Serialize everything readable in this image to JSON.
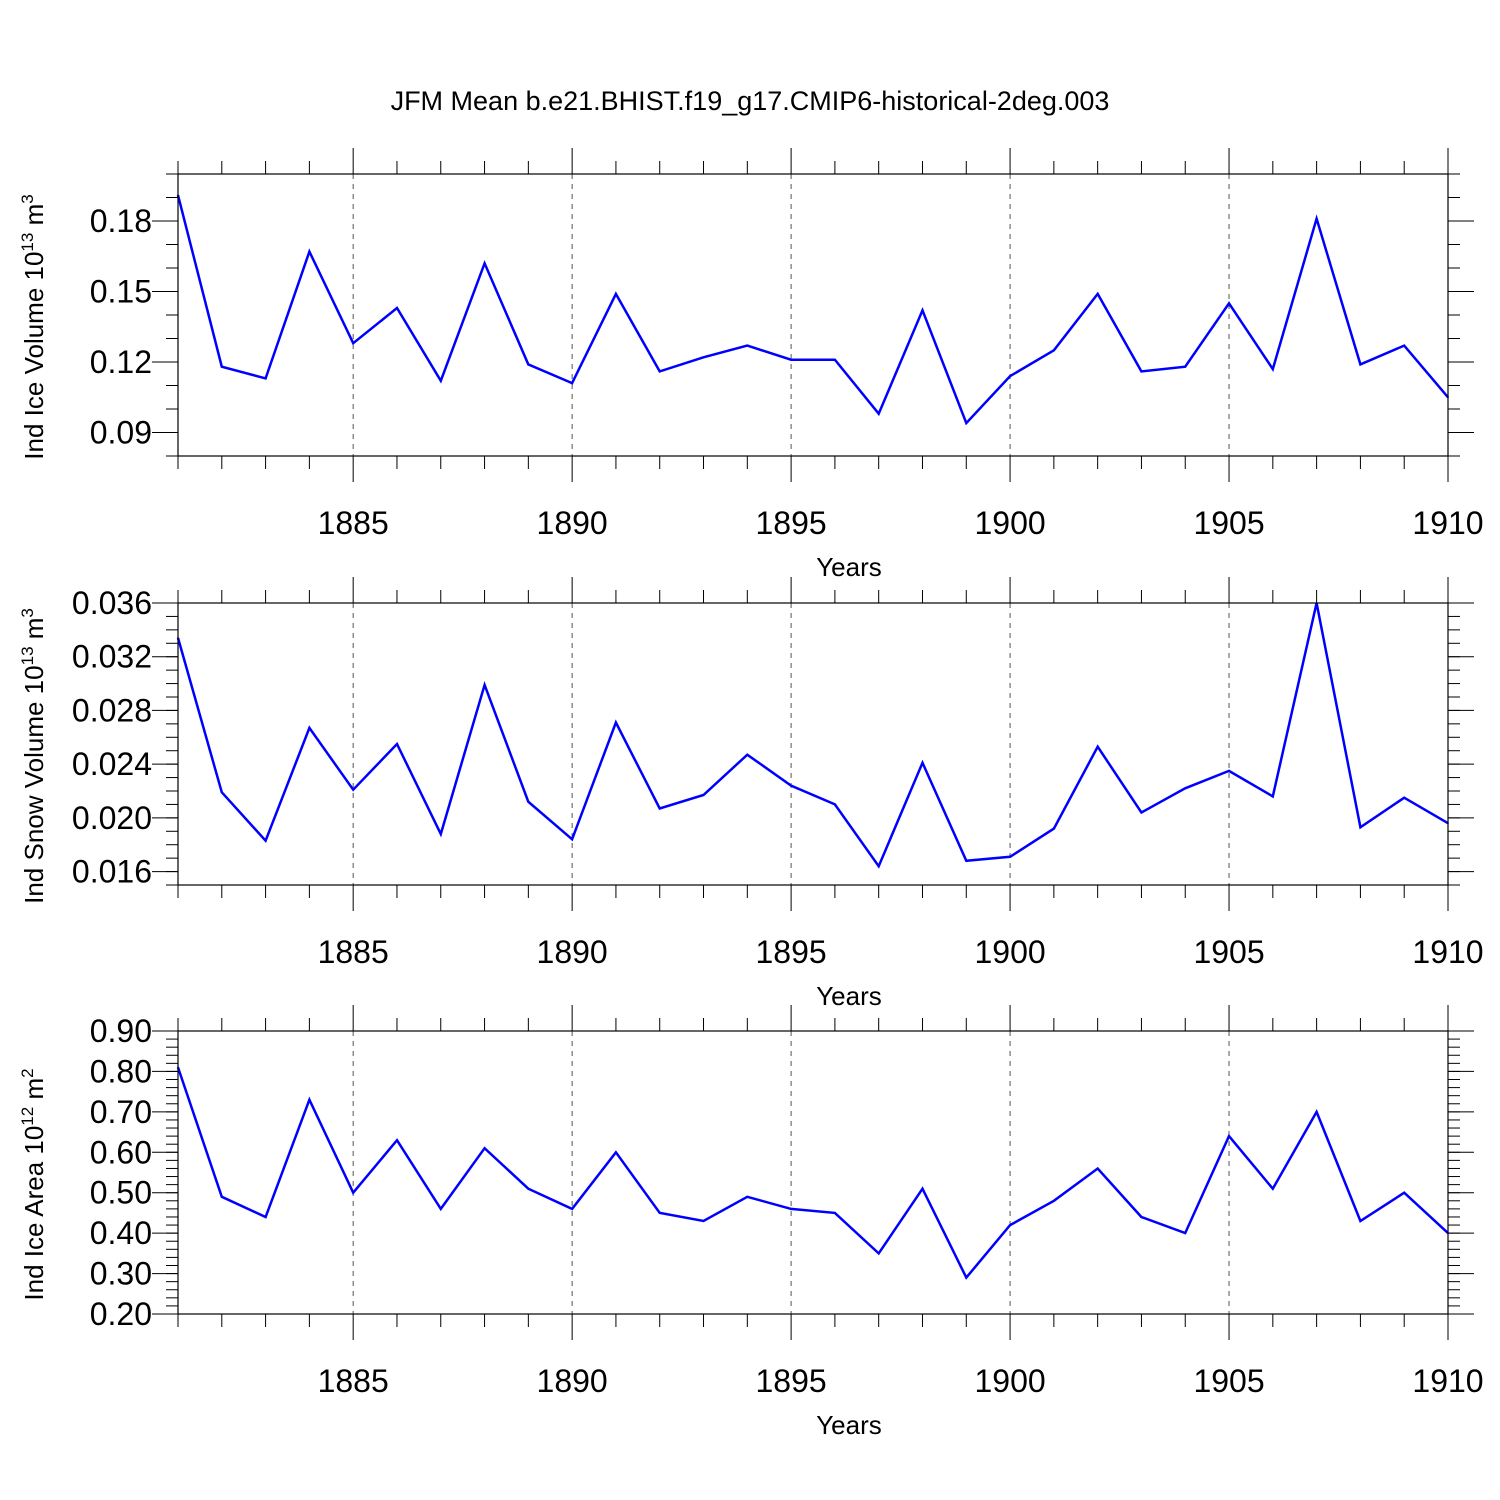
{
  "title": "JFM Mean b.e21.BHIST.f19_g17.CMIP6-historical-2deg.003",
  "colors": {
    "line": "#0000ff",
    "axis": "#000000",
    "grid": "#555555"
  },
  "chart_data": [
    {
      "type": "line",
      "ylabel_main": "Ind Ice Volume 10",
      "ylabel_exp1": "13",
      "ylabel_mid": " m",
      "ylabel_exp2": "3",
      "xlabel": "Years",
      "xlim": [
        1881,
        1910
      ],
      "ylim": [
        0.08,
        0.2
      ],
      "yticks": [
        0.09,
        0.12,
        0.15,
        0.18
      ],
      "ytick_labels": [
        "0.09",
        "0.12",
        "0.15",
        "0.18"
      ],
      "yminor_step": 0.01,
      "xticks": [
        1885,
        1890,
        1895,
        1900,
        1905,
        1910
      ],
      "xtick_labels": [
        "1885",
        "1890",
        "1895",
        "1900",
        "1905",
        "1910"
      ],
      "grid": "vertical dashed at major x ticks",
      "x": [
        1881,
        1882,
        1883,
        1884,
        1885,
        1886,
        1887,
        1888,
        1889,
        1890,
        1891,
        1892,
        1893,
        1894,
        1895,
        1896,
        1897,
        1898,
        1899,
        1900,
        1901,
        1902,
        1903,
        1904,
        1905,
        1906,
        1907,
        1908,
        1909,
        1910
      ],
      "series": [
        {
          "values": [
            0.191,
            0.118,
            0.113,
            0.167,
            0.128,
            0.143,
            0.112,
            0.162,
            0.119,
            0.111,
            0.149,
            0.116,
            0.122,
            0.127,
            0.121,
            0.121,
            0.098,
            0.142,
            0.094,
            0.114,
            0.125,
            0.149,
            0.116,
            0.118,
            0.145,
            0.117,
            0.181,
            0.119,
            0.127,
            0.105
          ]
        }
      ]
    },
    {
      "type": "line",
      "ylabel_main": "Ind Snow Volume 10",
      "ylabel_exp1": "13",
      "ylabel_mid": " m",
      "ylabel_exp2": "3",
      "xlabel": "Years",
      "xlim": [
        1881,
        1910
      ],
      "ylim": [
        0.015,
        0.036
      ],
      "yticks": [
        0.016,
        0.02,
        0.024,
        0.028,
        0.032,
        0.036
      ],
      "ytick_labels": [
        "0.016",
        "0.020",
        "0.024",
        "0.028",
        "0.032",
        "0.036"
      ],
      "yminor_step": 0.001,
      "xticks": [
        1885,
        1890,
        1895,
        1900,
        1905,
        1910
      ],
      "xtick_labels": [
        "1885",
        "1890",
        "1895",
        "1900",
        "1905",
        "1910"
      ],
      "grid": "vertical dashed at major x ticks",
      "x": [
        1881,
        1882,
        1883,
        1884,
        1885,
        1886,
        1887,
        1888,
        1889,
        1890,
        1891,
        1892,
        1893,
        1894,
        1895,
        1896,
        1897,
        1898,
        1899,
        1900,
        1901,
        1902,
        1903,
        1904,
        1905,
        1906,
        1907,
        1908,
        1909,
        1910
      ],
      "series": [
        {
          "values": [
            0.0334,
            0.0219,
            0.0183,
            0.0267,
            0.0221,
            0.0255,
            0.0188,
            0.0299,
            0.0212,
            0.0184,
            0.0271,
            0.0207,
            0.0217,
            0.0247,
            0.0224,
            0.021,
            0.0164,
            0.0241,
            0.0168,
            0.0171,
            0.0192,
            0.0253,
            0.0204,
            0.0222,
            0.0235,
            0.0216,
            0.036,
            0.0193,
            0.0215,
            0.0196
          ]
        }
      ]
    },
    {
      "type": "line",
      "ylabel_main": "Ind Ice Area 10",
      "ylabel_exp1": "12",
      "ylabel_mid": " m",
      "ylabel_exp2": "2",
      "xlabel": "Years",
      "xlim": [
        1881,
        1910
      ],
      "ylim": [
        0.2,
        0.9
      ],
      "yticks": [
        0.2,
        0.3,
        0.4,
        0.5,
        0.6,
        0.7,
        0.8,
        0.9
      ],
      "ytick_labels": [
        "0.20",
        "0.30",
        "0.40",
        "0.50",
        "0.60",
        "0.70",
        "0.80",
        "0.90"
      ],
      "yminor_step": 0.02,
      "xticks": [
        1885,
        1890,
        1895,
        1900,
        1905,
        1910
      ],
      "xtick_labels": [
        "1885",
        "1890",
        "1895",
        "1900",
        "1905",
        "1910"
      ],
      "grid": "vertical dashed at major x ticks",
      "x": [
        1881,
        1882,
        1883,
        1884,
        1885,
        1886,
        1887,
        1888,
        1889,
        1890,
        1891,
        1892,
        1893,
        1894,
        1895,
        1896,
        1897,
        1898,
        1899,
        1900,
        1901,
        1902,
        1903,
        1904,
        1905,
        1906,
        1907,
        1908,
        1909,
        1910
      ],
      "series": [
        {
          "values": [
            0.81,
            0.49,
            0.44,
            0.73,
            0.5,
            0.63,
            0.46,
            0.61,
            0.51,
            0.46,
            0.6,
            0.45,
            0.43,
            0.49,
            0.46,
            0.45,
            0.35,
            0.51,
            0.29,
            0.42,
            0.48,
            0.56,
            0.44,
            0.4,
            0.64,
            0.51,
            0.7,
            0.43,
            0.5,
            0.4
          ]
        }
      ]
    }
  ]
}
